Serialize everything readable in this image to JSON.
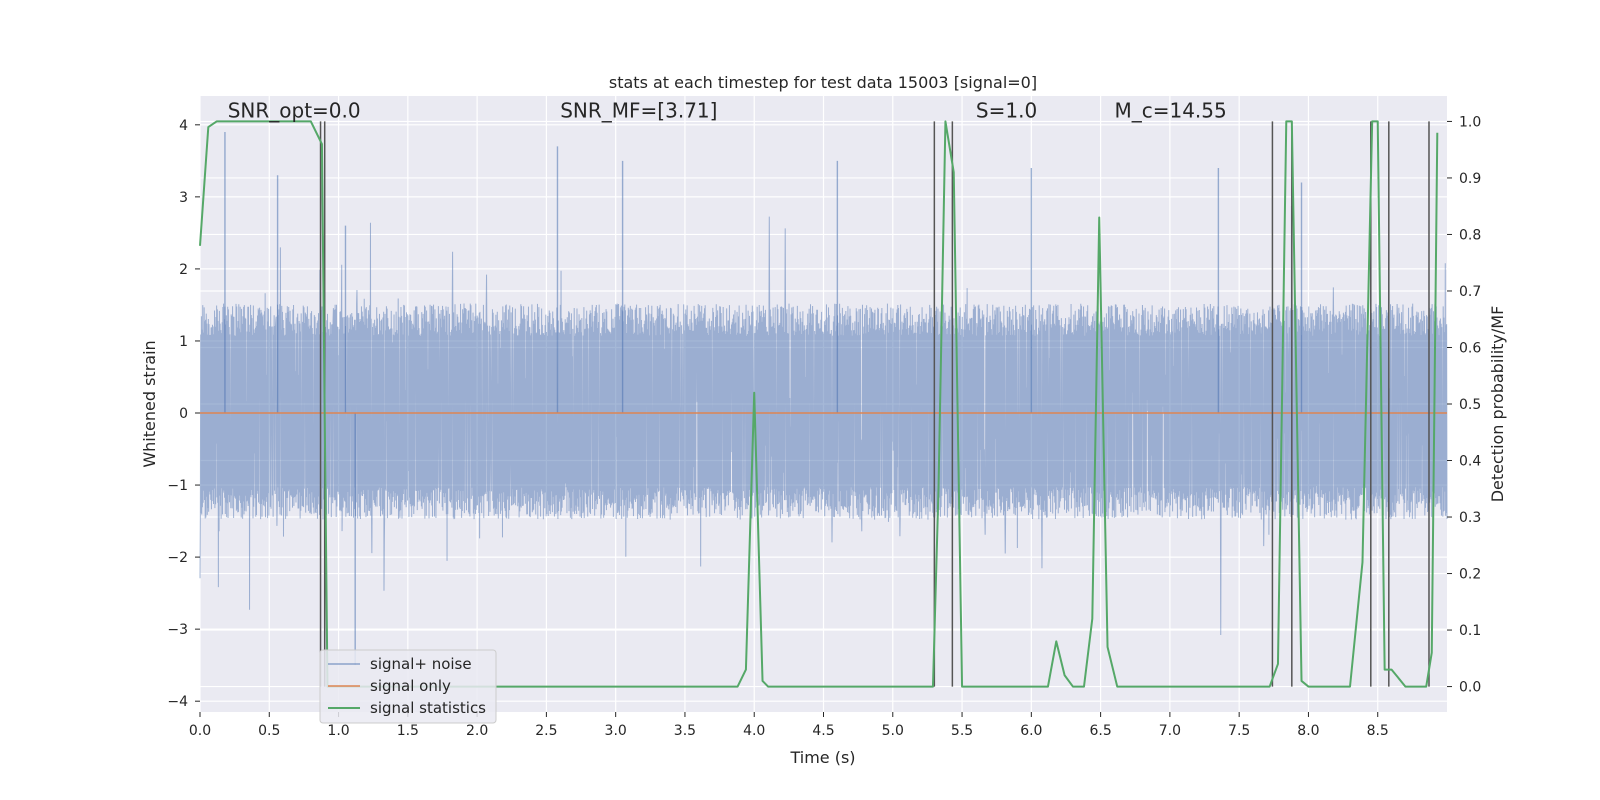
{
  "chart_data": {
    "type": "line",
    "title": "stats at each timestep for test data 15003 [signal=0]",
    "xlabel": "Time (s)",
    "ylabel": "Whitened strain",
    "y2label": "Detection probability/MF",
    "xlim": [
      0.0,
      9.0
    ],
    "ylim": [
      -4.15,
      4.4
    ],
    "y2lim": [
      -0.045,
      1.045
    ],
    "grid": true,
    "legend_position": "lower-left",
    "x_ticks": [
      "0.0",
      "0.5",
      "1.0",
      "1.5",
      "2.0",
      "2.5",
      "3.0",
      "3.5",
      "4.0",
      "4.5",
      "5.0",
      "5.5",
      "6.0",
      "6.5",
      "7.0",
      "7.5",
      "8.0",
      "8.5"
    ],
    "x_tick_values": [
      0.0,
      0.5,
      1.0,
      1.5,
      2.0,
      2.5,
      3.0,
      3.5,
      4.0,
      4.5,
      5.0,
      5.5,
      6.0,
      6.5,
      7.0,
      7.5,
      8.0,
      8.5
    ],
    "y_ticks": [
      "−4",
      "−3",
      "−2",
      "−1",
      "0",
      "1",
      "2",
      "3",
      "4"
    ],
    "y_tick_values": [
      -4,
      -3,
      -2,
      -1,
      0,
      1,
      2,
      3,
      4
    ],
    "y2_ticks": [
      "0.0",
      "0.1",
      "0.2",
      "0.3",
      "0.4",
      "0.5",
      "0.6",
      "0.7",
      "0.8",
      "0.9",
      "1.0"
    ],
    "y2_tick_values": [
      0.0,
      0.1,
      0.2,
      0.3,
      0.4,
      0.5,
      0.6,
      0.7,
      0.8,
      0.9,
      1.0
    ],
    "annotations": [
      {
        "id": "snr-opt",
        "text": "SNR_opt=0.0",
        "x": 0.2,
        "y": 4.1
      },
      {
        "id": "snr-mf",
        "text": "SNR_MF=[3.71]",
        "x": 2.6,
        "y": 4.1
      },
      {
        "id": "s-value",
        "text": "S=1.0",
        "x": 5.6,
        "y": 4.1
      },
      {
        "id": "mc-value",
        "text": "M_c=14.55",
        "x": 6.6,
        "y": 4.1
      }
    ],
    "noise": {
      "name": "signal+ noise",
      "color": "#4c72b0",
      "band": [
        -1.4,
        1.6
      ],
      "extremes": [
        -3.2,
        3.7
      ],
      "spike_times": [
        0.18,
        0.56,
        1.05,
        1.12,
        2.58,
        3.05,
        4.6,
        6.0,
        7.35,
        7.95,
        8.45
      ],
      "spike_values": [
        3.9,
        3.3,
        2.6,
        -3.5,
        3.7,
        3.5,
        3.5,
        3.4,
        3.4,
        3.2,
        3.3
      ]
    },
    "signal_only": {
      "name": "signal only",
      "color": "#dd8452",
      "x": [
        0.0,
        9.0
      ],
      "y": [
        0.0,
        0.0
      ]
    },
    "statistics": {
      "name": "signal statistics",
      "color": "#55a868",
      "x": [
        0.0,
        0.06,
        0.12,
        0.2,
        0.3,
        0.4,
        0.5,
        0.6,
        0.7,
        0.8,
        0.88,
        0.92,
        0.98,
        1.05,
        1.5,
        2.0,
        2.5,
        3.0,
        3.5,
        3.88,
        3.94,
        4.0,
        4.06,
        4.1,
        4.5,
        5.0,
        5.29,
        5.33,
        5.38,
        5.44,
        5.5,
        5.6,
        6.0,
        6.12,
        6.18,
        6.24,
        6.3,
        6.38,
        6.44,
        6.49,
        6.55,
        6.62,
        7.0,
        7.5,
        7.72,
        7.78,
        7.84,
        7.88,
        7.95,
        8.0,
        8.1,
        8.2,
        8.3,
        8.39,
        8.46,
        8.5,
        8.55,
        8.6,
        8.7,
        8.8,
        8.85,
        8.89,
        8.93
      ],
      "y": [
        0.78,
        0.99,
        1.0,
        1.0,
        1.0,
        1.0,
        1.0,
        1.0,
        1.0,
        1.0,
        0.96,
        0.0,
        0.0,
        0.0,
        0.0,
        0.0,
        0.0,
        0.0,
        0.0,
        0.0,
        0.03,
        0.52,
        0.01,
        0.0,
        0.0,
        0.0,
        0.0,
        0.35,
        1.0,
        0.91,
        0.0,
        0.0,
        0.0,
        0.0,
        0.08,
        0.02,
        0.0,
        0.0,
        0.12,
        0.83,
        0.07,
        0.0,
        0.0,
        0.0,
        0.0,
        0.04,
        1.0,
        1.0,
        0.01,
        0.0,
        0.0,
        0.0,
        0.0,
        0.22,
        1.0,
        1.0,
        0.03,
        0.03,
        0.0,
        0.0,
        0.0,
        0.06,
        0.98
      ]
    },
    "vertical_markers": {
      "color": "#555555",
      "x": [
        0.87,
        0.9,
        5.3,
        5.43,
        7.74,
        7.88,
        8.45,
        8.58,
        8.87
      ]
    }
  }
}
